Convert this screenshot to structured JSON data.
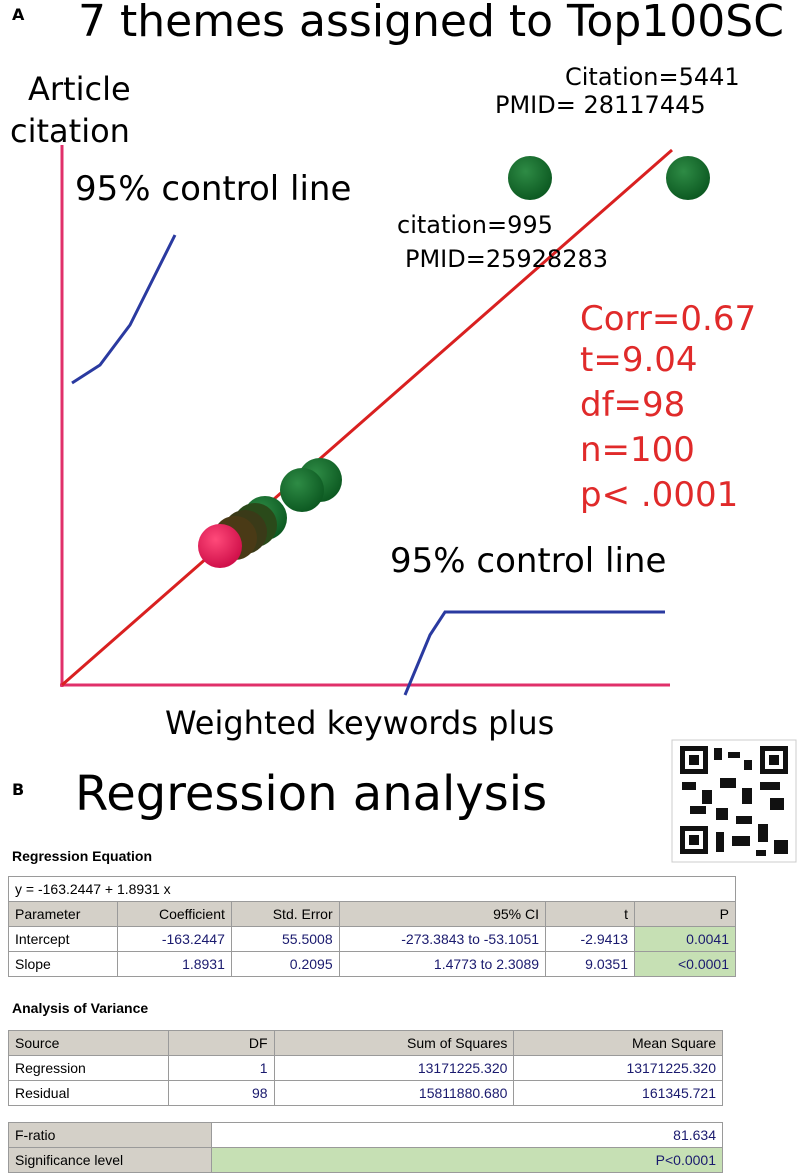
{
  "panel_a": {
    "label": "A",
    "title": "7 themes assigned to Top100SC",
    "y_label": [
      "Article",
      "citation"
    ],
    "x_label": "Weighted keywords plus",
    "control_line_labels": [
      "95% control line",
      "95% control line"
    ],
    "annotations": [
      [
        "Citation=5441",
        "PMID= 28117445"
      ],
      [
        "citation=995",
        "PMID=25928283"
      ]
    ],
    "stats": [
      "Corr=0.67",
      "t=9.04",
      "df=98",
      "n=100",
      "p< .0001"
    ]
  },
  "panel_b": {
    "label": "B",
    "title": "Regression analysis",
    "regression": {
      "heading": "Regression Equation",
      "equation": "y = -163.2447 + 1.8931 x",
      "header": [
        "Parameter",
        "Coefficient",
        "Std. Error",
        "95% CI",
        "t",
        "P"
      ],
      "rows": [
        [
          "Intercept",
          "-163.2447",
          "55.5008",
          "-273.3843 to -53.1051",
          "-2.9413",
          "0.0041"
        ],
        [
          "Slope",
          "1.8931",
          "0.2095",
          "1.4773 to 2.3089",
          "9.0351",
          "<0.0001"
        ]
      ]
    },
    "anova": {
      "heading": "Analysis of Variance",
      "header": [
        "Source",
        "DF",
        "Sum of Squares",
        "Mean Square"
      ],
      "rows": [
        [
          "Regression",
          "1",
          "13171225.320",
          "13171225.320"
        ],
        [
          "Residual",
          "98",
          "15811880.680",
          "161345.721"
        ]
      ]
    },
    "summary": [
      [
        "F-ratio",
        "81.634"
      ],
      [
        "Significance level",
        "P<0.0001"
      ]
    ]
  }
}
